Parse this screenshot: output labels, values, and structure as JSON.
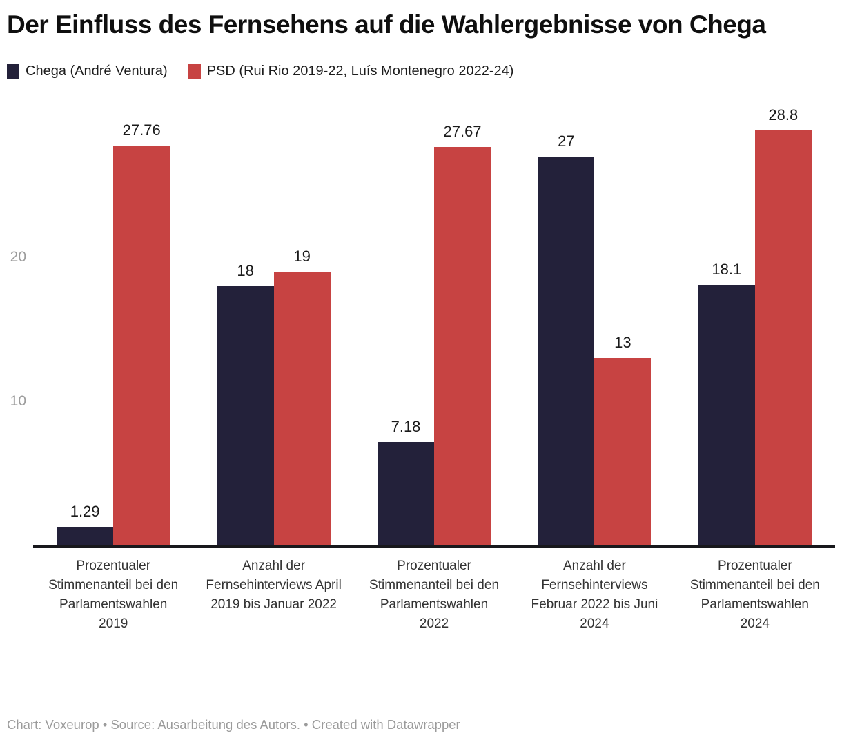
{
  "title": "Der Einfluss des Fernsehens auf die Wahlergebnisse von Chega",
  "legend": [
    {
      "label": "Chega (André Ventura)",
      "color": "#23213a"
    },
    {
      "label": "PSD (Rui Rio 2019-22, Luís Montenegro 2022-24)",
      "color": "#c74342"
    }
  ],
  "footer": "Chart: Voxeurop • Source: Ausarbeitung des Autors. • Created with Datawrapper",
  "chart_data": {
    "type": "bar",
    "title": "Der Einfluss des Fernsehens auf die Wahlergebnisse von Chega",
    "categories": [
      "Prozentualer Stimmenanteil bei den Parlamentswahlen 2019",
      "Anzahl der Fernsehinterviews April 2019 bis Januar 2022",
      "Prozentualer Stimmenanteil bei den Parlamentswahlen 2022",
      "Anzahl der Fernsehinterviews Februar 2022 bis Juni 2024",
      "Prozentualer Stimmenanteil bei den Parlamentswahlen 2024"
    ],
    "series": [
      {
        "name": "Chega (André Ventura)",
        "color": "#23213a",
        "values": [
          1.29,
          18,
          7.18,
          27,
          18.1
        ],
        "labels": [
          "1.29",
          "18",
          "7.18",
          "27",
          "18.1"
        ]
      },
      {
        "name": "PSD (Rui Rio 2019-22, Luís Montenegro 2022-24)",
        "color": "#c74342",
        "values": [
          27.76,
          19,
          27.67,
          13,
          28.8
        ],
        "labels": [
          "27.76",
          "19",
          "27.67",
          "13",
          "28.8"
        ]
      }
    ],
    "xlabel": "",
    "ylabel": "",
    "ylim": [
      0,
      30.8
    ],
    "yticks": [
      10,
      20
    ],
    "grid": "horizontal",
    "legend_position": "top",
    "colors": {
      "axis_tick_text": "#9c9c9c",
      "gridline": "#dcdcdc",
      "baseline": "#18181c"
    }
  }
}
